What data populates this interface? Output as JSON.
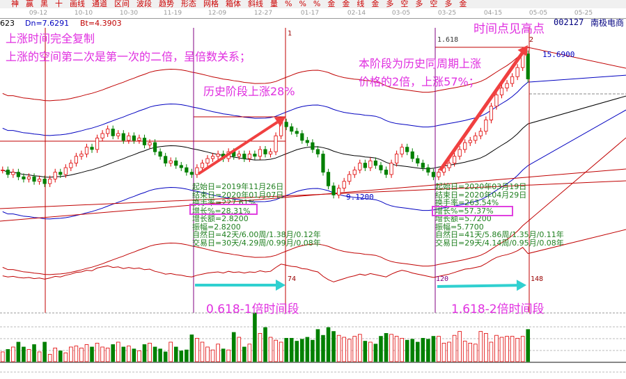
{
  "toolbar": {
    "icons": [
      "神",
      "赢",
      "黑",
      "十",
      "画线",
      "通道",
      "区间",
      "波段",
      "趋势",
      "形态",
      "网格",
      "箱体",
      "斜线",
      "量",
      "%",
      "%",
      "%",
      "金",
      "金",
      "线",
      "金",
      "多",
      "空",
      "多",
      "空",
      "多",
      "金"
    ]
  },
  "date_axis": [
    "09-12",
    "10-10",
    "10-30",
    "11-19",
    "12-09",
    "12-27",
    "01-17",
    "02-14",
    "03-05",
    "03-25",
    "04-15",
    "05-05",
    "05-25"
  ],
  "indicator_info": {
    "prev": "623",
    "dn": "Dn=7.6291",
    "bt": "Bt=4.3903"
  },
  "stock": {
    "code": "002127",
    "name": "南极电商"
  },
  "annotations": {
    "line1": "上涨时间完全复制",
    "line2": "上涨的空间第二次是第一次的二倍，呈倍数关系；",
    "history_rise": "历史阶段上涨28%",
    "current_rise_1": "本阶段为历史同周期上涨",
    "current_rise_2": "价格的2倍，上涨57%；",
    "time_high": "时间点见高点",
    "period1": "0.618-1倍时间段",
    "period2": "1.618-2倍时间段"
  },
  "markers": {
    "m1": "1",
    "m1618": "1.618",
    "m2": "2",
    "c74": "74",
    "c120": "120",
    "c148": "148",
    "low": "9.1200",
    "high": "15.6900"
  },
  "stats1": {
    "start": "起始日=2019年11月26日",
    "end": "结束日=2020年01月07日",
    "turnover": "换手率=227.61%",
    "growth": "增长%=28.31%",
    "amount": "增长额=2.8200",
    "amplitude": "振幅=2.8200",
    "natural": "自然日=42天/6.00周/1.38月/0.12年",
    "trading": "交易日=30天/4.29周/0.99月/0.08年"
  },
  "stats2": {
    "start": "起始日=2020年03月19日",
    "end": "结束日=2020年04月29日",
    "turnover": "换手率=263.54%",
    "growth": "增长%=57.37%",
    "amount": "增长额=5.7200",
    "amplitude": "振幅=5.7700",
    "natural": "自然日=41天/5.86周/1.35月/0.11年",
    "trading": "交易日=29天/4.14周/0.95月/0.08年"
  },
  "colors": {
    "up": "#e00000",
    "down": "#008000",
    "annotation": "#e030e0",
    "arrow": "#f04040",
    "time_arrow": "#30d0d0",
    "ma": "#000000",
    "band_outer": "#c00000",
    "band_inner": "#0000c0"
  },
  "chart_data": {
    "type": "candlestick",
    "close": [
      10.3,
      10.1,
      10.2,
      10.0,
      9.9,
      10.0,
      9.8,
      9.9,
      9.7,
      9.9,
      10.2,
      10.1,
      10.4,
      10.6,
      10.9,
      11.0,
      11.3,
      11.2,
      11.7,
      11.9,
      12.1,
      11.8,
      11.9,
      11.6,
      11.8,
      11.6,
      11.7,
      11.4,
      11.5,
      11.1,
      10.9,
      10.6,
      10.7,
      10.5,
      10.4,
      10.2,
      10.1,
      10.4,
      10.6,
      10.8,
      10.9,
      11.0,
      10.8,
      11.1,
      10.9,
      11.0,
      10.8,
      11.0,
      10.9,
      11.2,
      11.0,
      11.1,
      11.8,
      12.4,
      12.2,
      12.0,
      11.9,
      11.6,
      11.5,
      11.2,
      11.0,
      10.2,
      9.6,
      9.2,
      9.5,
      9.8,
      10.1,
      10.3,
      10.6,
      10.4,
      10.7,
      10.5,
      10.3,
      10.1,
      10.6,
      11.0,
      11.3,
      11.1,
      10.8,
      10.6,
      10.4,
      10.2,
      10.0,
      10.2,
      10.4,
      10.6,
      10.9,
      11.2,
      11.5,
      11.6,
      11.8,
      12.0,
      12.5,
      13.1,
      13.6,
      13.9,
      14.1,
      14.4,
      14.8,
      15.4,
      14.3
    ],
    "volume": [
      20,
      25,
      30,
      40,
      30,
      25,
      35,
      20,
      40,
      15,
      28,
      22,
      18,
      30,
      32,
      28,
      35,
      30,
      38,
      30,
      28,
      35,
      40,
      30,
      32,
      26,
      22,
      35,
      38,
      30,
      26,
      20,
      40,
      30,
      22,
      24,
      55,
      48,
      40,
      30,
      24,
      36,
      26,
      24,
      60,
      50,
      30,
      36,
      100,
      58,
      70,
      50,
      44,
      40,
      48,
      48,
      42,
      46,
      50,
      44,
      66,
      54,
      70,
      62,
      54,
      50,
      46,
      52,
      56,
      42,
      40,
      36,
      52,
      58,
      56,
      52,
      48,
      44,
      46,
      40,
      48,
      46,
      52,
      52,
      38,
      40,
      54,
      62,
      42,
      38,
      36,
      62,
      58,
      40,
      54,
      50,
      52,
      52,
      48,
      52,
      66
    ],
    "price_range": [
      9.12,
      15.69
    ]
  }
}
